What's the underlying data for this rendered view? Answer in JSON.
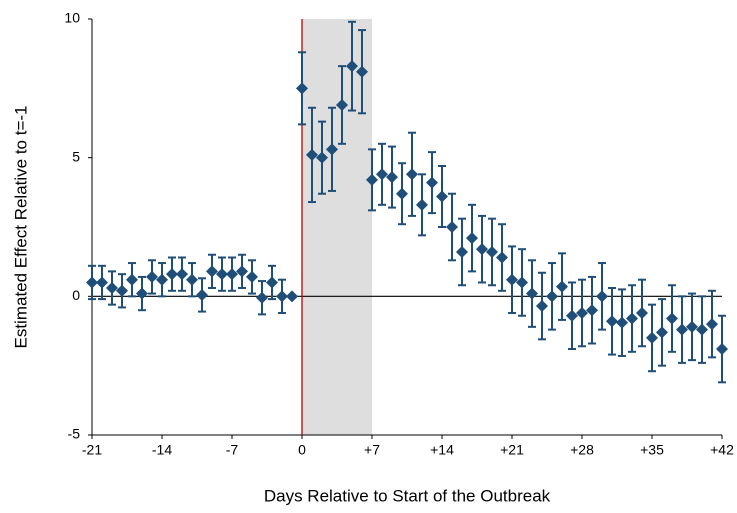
{
  "chart_data": {
    "type": "errorbar",
    "x_label": "Days Relative to Start of the Outbreak",
    "y_label": "Estimated Effect Relative to t=-1",
    "x": [
      -21,
      -20,
      -19,
      -18,
      -17,
      -16,
      -15,
      -14,
      -13,
      -12,
      -11,
      -10,
      -9,
      -8,
      -7,
      -6,
      -5,
      -4,
      -3,
      -2,
      -1,
      0,
      1,
      2,
      3,
      4,
      5,
      6,
      7,
      8,
      9,
      10,
      11,
      12,
      13,
      14,
      15,
      16,
      17,
      18,
      19,
      20,
      21,
      22,
      23,
      24,
      25,
      26,
      27,
      28,
      29,
      30,
      31,
      32,
      33,
      34,
      35,
      36,
      37,
      38,
      39,
      40,
      41,
      42
    ],
    "values": [
      0.5,
      0.5,
      0.3,
      0.2,
      0.6,
      0.1,
      0.7,
      0.6,
      0.8,
      0.8,
      0.6,
      0.05,
      0.9,
      0.8,
      0.8,
      0.9,
      0.7,
      -0.05,
      0.5,
      0,
      0,
      7.5,
      5.1,
      5.0,
      5.3,
      6.9,
      8.3,
      8.1,
      4.2,
      4.4,
      4.3,
      3.7,
      4.4,
      3.3,
      4.1,
      3.6,
      2.5,
      1.6,
      2.1,
      1.7,
      1.6,
      1.4,
      0.6,
      0.5,
      0.1,
      -0.35,
      0.0,
      0.35,
      -0.7,
      -0.6,
      -0.5,
      0.0,
      -0.9,
      -0.95,
      -0.8,
      -0.6,
      -1.5,
      -1.3,
      -0.8,
      -1.2,
      -1.1,
      -1.2,
      -1.0,
      -1.9
    ],
    "errors": [
      0.6,
      0.6,
      0.6,
      0.6,
      0.6,
      0.6,
      0.6,
      0.6,
      0.6,
      0.6,
      0.6,
      0.6,
      0.6,
      0.6,
      0.6,
      0.6,
      0.6,
      0.6,
      0.6,
      0.6,
      0,
      1.3,
      1.7,
      1.3,
      1.5,
      1.4,
      1.6,
      1.5,
      1.1,
      1.1,
      1.1,
      1.1,
      1.5,
      1.1,
      1.1,
      1.1,
      1.2,
      1.2,
      1.2,
      1.2,
      1.2,
      1.2,
      1.2,
      1.2,
      1.2,
      1.2,
      1.2,
      1.2,
      1.2,
      1.2,
      1.2,
      1.2,
      1.2,
      1.2,
      1.2,
      1.2,
      1.2,
      1.2,
      1.2,
      1.2,
      1.2,
      1.2,
      1.2,
      1.2
    ],
    "color": "#1f4e79",
    "xlim": [
      -21,
      42
    ],
    "ylim": [
      -5,
      10
    ],
    "xticks": [
      -21,
      -14,
      -7,
      0,
      {
        "value": 7,
        "label": "+7"
      },
      {
        "value": 14,
        "label": "+14"
      },
      {
        "value": 21,
        "label": "+21"
      },
      {
        "value": 28,
        "label": "+28"
      },
      {
        "value": 35,
        "label": "+35"
      },
      {
        "value": 42,
        "label": "+42"
      }
    ],
    "yticks": [
      -5,
      0,
      5,
      10
    ],
    "shade": [
      0,
      7
    ],
    "shade_color": "#dedede",
    "vline": 0,
    "vline_color": "#c00000",
    "hline": 0
  }
}
